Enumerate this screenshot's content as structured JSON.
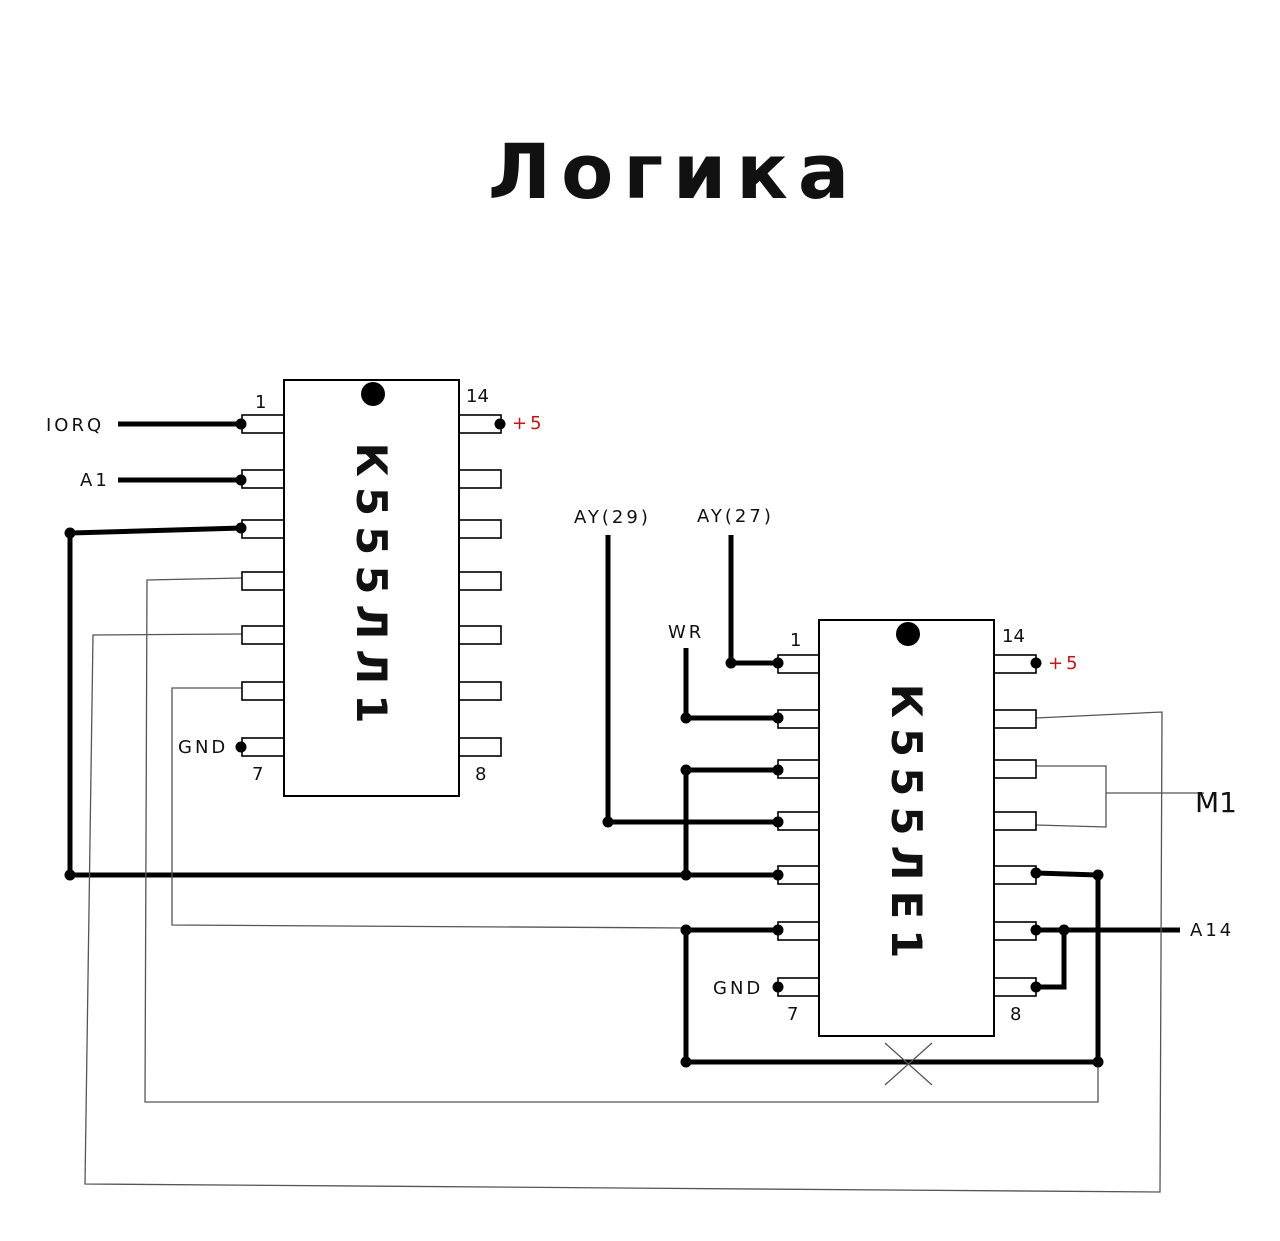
{
  "title": "Логика",
  "chip1": {
    "name": "К555ЛЛ1",
    "pin_first": "1",
    "pin_last": "14",
    "pin_gnd": "7",
    "pin_8": "8"
  },
  "chip2": {
    "name": "К555ЛЕ1",
    "pin_first": "1",
    "pin_last": "14",
    "pin_gnd": "7",
    "pin_8": "8"
  },
  "signals": {
    "iorq": "IORQ",
    "a1": "A1",
    "gnd1": "GND",
    "gnd2": "GND",
    "plus5_1": "+5",
    "plus5_2": "+5",
    "ay29": "AY(29)",
    "ay27": "AY(27)",
    "wr": "WR",
    "m1": "M1",
    "a14": "A14"
  },
  "colors": {
    "power_label": "#d01010",
    "wire": "#000000"
  }
}
